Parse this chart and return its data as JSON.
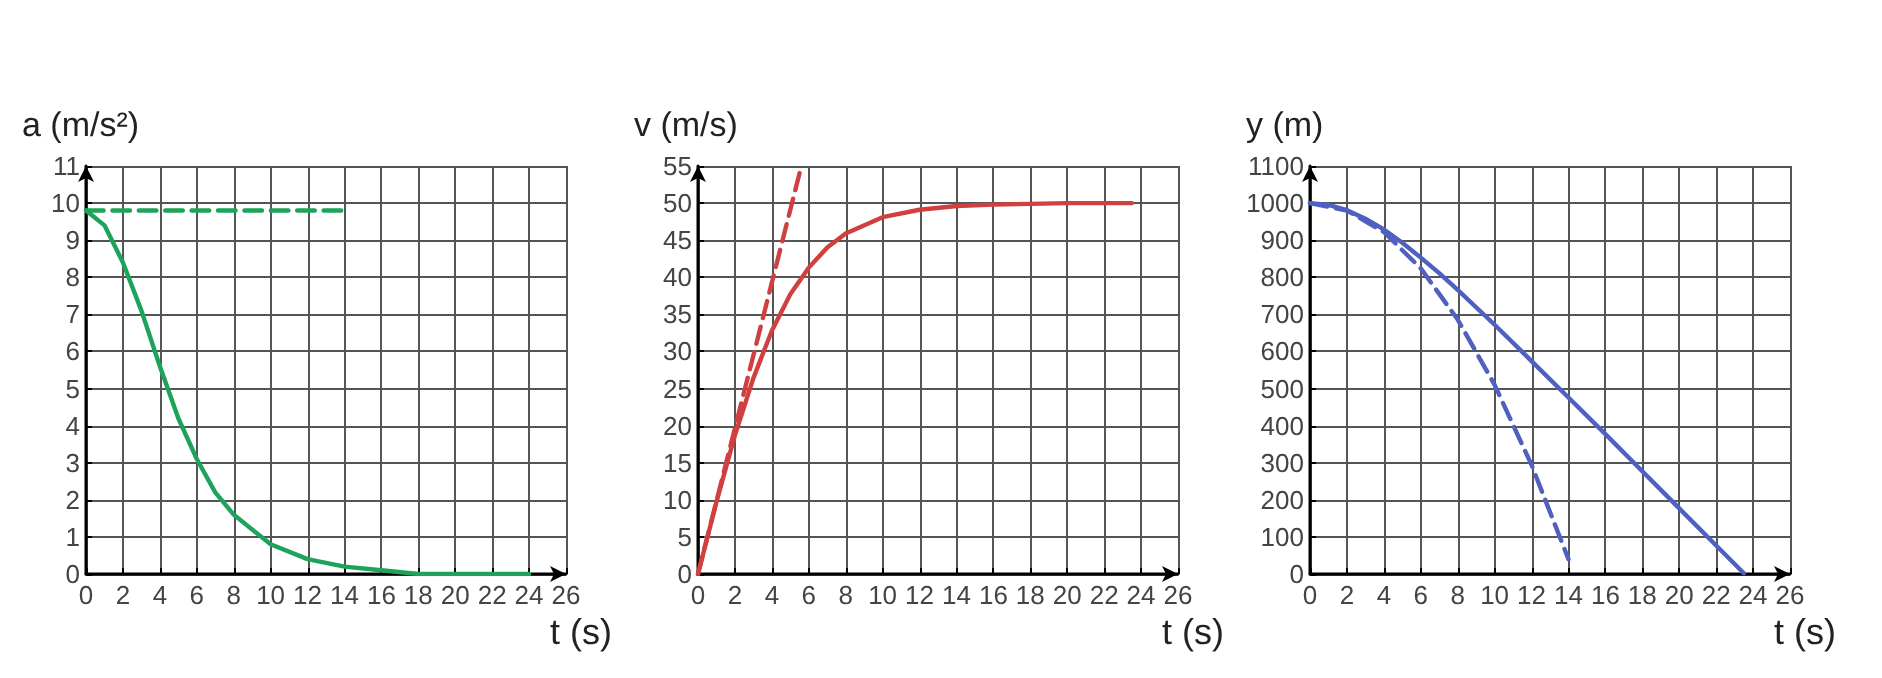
{
  "chart_data": [
    {
      "type": "line",
      "xlabel": "t (s)",
      "ylabel": "a (m/s²)",
      "xlim": [
        0,
        26
      ],
      "xticks": [
        0,
        2,
        4,
        6,
        8,
        10,
        12,
        14,
        16,
        18,
        20,
        22,
        24,
        26
      ],
      "ylim": [
        0,
        11
      ],
      "yticks": [
        0,
        1,
        2,
        3,
        4,
        5,
        6,
        7,
        8,
        9,
        10,
        11
      ],
      "grid": true,
      "series": [
        {
          "color": "#1ea35a",
          "line_style": "solid",
          "x": [
            0,
            1,
            2,
            3,
            4,
            5,
            6,
            7,
            8,
            10,
            12,
            14,
            16,
            18,
            20,
            22,
            24
          ],
          "values": [
            9.8,
            9.4,
            8.4,
            7.1,
            5.6,
            4.2,
            3.1,
            2.2,
            1.6,
            0.8,
            0.4,
            0.2,
            0.1,
            0,
            0,
            0,
            0
          ]
        },
        {
          "color": "#1ea35a",
          "line_style": "dashed",
          "x": [
            0,
            14
          ],
          "values": [
            9.8,
            9.8
          ]
        }
      ]
    },
    {
      "type": "line",
      "xlabel": "t (s)",
      "ylabel": "v (m/s)",
      "xlim": [
        0,
        26
      ],
      "xticks": [
        0,
        2,
        4,
        6,
        8,
        10,
        12,
        14,
        16,
        18,
        20,
        22,
        24,
        26
      ],
      "ylim": [
        0,
        55
      ],
      "yticks": [
        0,
        5,
        10,
        15,
        20,
        25,
        30,
        35,
        40,
        45,
        50,
        55
      ],
      "grid": true,
      "series": [
        {
          "color": "#d04040",
          "line_style": "solid",
          "x": [
            0,
            1,
            2,
            3,
            4,
            5,
            6,
            7,
            8,
            10,
            12,
            14,
            16,
            18,
            20,
            22,
            23.5
          ],
          "values": [
            0,
            9.7,
            18.7,
            26.4,
            32.8,
            37.7,
            41.3,
            44,
            45.9,
            48.1,
            49.1,
            49.6,
            49.8,
            49.9,
            50,
            50,
            50
          ]
        },
        {
          "color": "#d04040",
          "line_style": "dashed",
          "x": [
            0,
            5.6
          ],
          "values": [
            0,
            55
          ]
        }
      ]
    },
    {
      "type": "line",
      "xlabel": "t (s)",
      "ylabel": "y (m)",
      "xlim": [
        0,
        26
      ],
      "xticks": [
        0,
        2,
        4,
        6,
        8,
        10,
        12,
        14,
        16,
        18,
        20,
        22,
        24,
        26
      ],
      "ylim": [
        0,
        1100
      ],
      "yticks": [
        0,
        100,
        200,
        300,
        400,
        500,
        600,
        700,
        800,
        900,
        1000,
        1100
      ],
      "grid": true,
      "series": [
        {
          "color": "#5060c0",
          "line_style": "solid",
          "x": [
            0,
            1,
            2,
            3,
            4,
            5,
            6,
            7,
            8,
            10,
            12,
            14,
            16,
            18,
            20,
            22,
            23.5
          ],
          "values": [
            1000,
            995,
            981,
            958,
            929,
            893,
            853,
            811,
            766,
            672,
            574,
            476,
            377,
            277,
            177,
            77,
            2
          ]
        },
        {
          "color": "#5060c0",
          "line_style": "dashed",
          "x": [
            0,
            2,
            4,
            6,
            8,
            10,
            12,
            14
          ],
          "values": [
            1000,
            980,
            922,
            824,
            686,
            510,
            294,
            40
          ]
        }
      ]
    }
  ]
}
